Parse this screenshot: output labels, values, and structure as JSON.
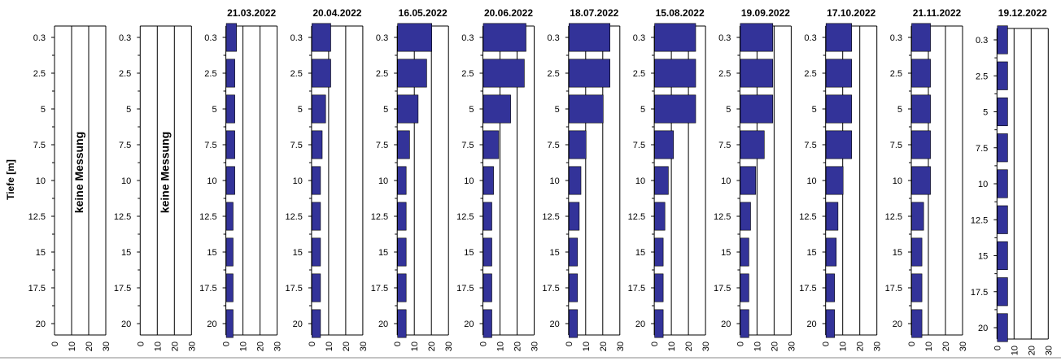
{
  "chart_data": {
    "type": "bar",
    "orientation": "horizontal",
    "ylabel": "Tiefe [m]",
    "categories": [
      "0.3",
      "2.5",
      "5",
      "7.5",
      "10",
      "12.5",
      "15",
      "17.5",
      "20"
    ],
    "xticks": [
      "0",
      "10",
      "20",
      "30"
    ],
    "xlim": [
      0,
      30
    ],
    "grid": "vertical",
    "bar_color": "#333399",
    "panels": [
      {
        "title": "",
        "note": "keine Messung",
        "values": null
      },
      {
        "title": "",
        "note": "keine Messung",
        "values": null
      },
      {
        "title": "21.03.2022",
        "note": "",
        "values": [
          6,
          5,
          5,
          5,
          5,
          4,
          4,
          4,
          4
        ]
      },
      {
        "title": "20.04.2022",
        "note": "",
        "values": [
          11,
          11,
          8,
          6,
          5,
          5,
          5,
          5,
          5
        ]
      },
      {
        "title": "16.05.2022",
        "note": "",
        "values": [
          20,
          17,
          12,
          7,
          5,
          5,
          5,
          5,
          5
        ]
      },
      {
        "title": "20.06.2022",
        "note": "",
        "values": [
          25,
          24,
          16,
          9,
          6,
          5,
          5,
          5,
          5
        ]
      },
      {
        "title": "18.07.2022",
        "note": "",
        "values": [
          24,
          24,
          20,
          10,
          7,
          6,
          5,
          5,
          5
        ]
      },
      {
        "title": "15.08.2022",
        "note": "",
        "values": [
          24,
          24,
          24,
          11,
          8,
          6,
          5,
          5,
          5
        ]
      },
      {
        "title": "19.09.2022",
        "note": "",
        "values": [
          19,
          19,
          19,
          14,
          9,
          6,
          5,
          5,
          5
        ]
      },
      {
        "title": "17.10.2022",
        "note": "",
        "values": [
          15,
          15,
          15,
          15,
          10,
          7,
          6,
          5,
          5
        ]
      },
      {
        "title": "21.11.2022",
        "note": "",
        "values": [
          11,
          11,
          11,
          11,
          11,
          7,
          6,
          6,
          6
        ]
      },
      {
        "title": "19.12.2022",
        "note": "",
        "values": [
          6,
          6,
          6,
          6,
          6,
          6,
          6,
          6,
          6
        ]
      }
    ]
  }
}
